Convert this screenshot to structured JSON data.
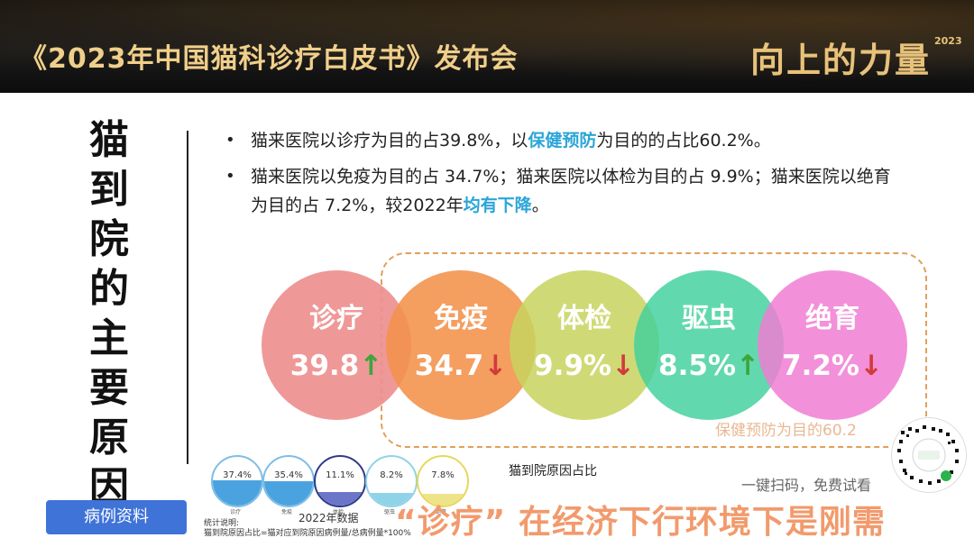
{
  "header": {
    "title": "《2023年中国猫科诊疗白皮书》发布会",
    "brand": "向上的力量",
    "brand_year": "2023"
  },
  "side_title": "猫到院的主要原因",
  "bullets": [
    {
      "seg1": "猫来医院以诊疗为目的占39.8%，以",
      "hl": "保健预防",
      "seg2": "为目的的占比60.2%。",
      "seg3": ""
    },
    {
      "seg1": "猫来医院以免疫为目的占 34.7%；猫来医院以体检为目的占 9.9%；猫来医院以绝育为目的占 7.2%，较2022年",
      "hl": "均有下降",
      "seg2": "。",
      "seg3": ""
    }
  ],
  "circles": [
    {
      "label": "诊疗",
      "value": "39.8",
      "trend": "↑"
    },
    {
      "label": "免疫",
      "value": "34.7",
      "trend": "↓"
    },
    {
      "label": "体检",
      "value": "9.9%",
      "trend": "↓"
    },
    {
      "label": "驱虫",
      "value": "8.5%",
      "trend": "↑"
    },
    {
      "label": "绝育",
      "value": "7.2%",
      "trend": "↓"
    }
  ],
  "prevention_note": "保健预防为目的60.2",
  "mini_chart": {
    "year_label": "2022年数据",
    "items": [
      {
        "value": "37.4%",
        "label": "诊疗",
        "level": 0.374
      },
      {
        "value": "35.4%",
        "label": "免疫",
        "level": 0.354
      },
      {
        "value": "11.1%",
        "label": "体检",
        "level": 0.111
      },
      {
        "value": "8.2%",
        "label": "驱虫",
        "level": 0.082
      },
      {
        "value": "7.8%",
        "label": "绝育",
        "level": 0.078
      }
    ]
  },
  "chart_caption": "猫到院原因占比",
  "stat_note": {
    "line1": "统计说明:",
    "line2": "猫到院原因占比=猫对应到院原因病例量/总病例量*100%"
  },
  "case_button": "病例资料",
  "slogan": "“诊疗” 在经济下行环境下是刚需",
  "scan_tip": "一键扫码，免费试看",
  "colors": {
    "highlight": "#2aa5d8",
    "up": "#3ca53c",
    "down": "#d23b3b",
    "slogan": "#f29a6c",
    "button": "#3f73d8"
  }
}
